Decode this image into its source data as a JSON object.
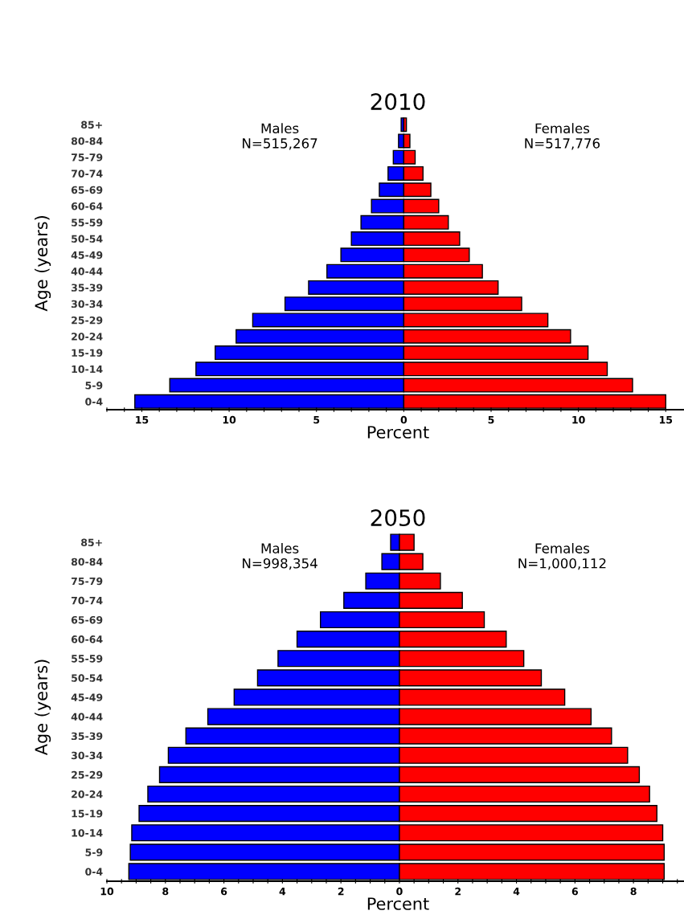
{
  "chart_data": [
    {
      "type": "bar",
      "orientation": "horizontal",
      "stacked": true,
      "title": "2010",
      "xlabel": "Percent",
      "ylabel": "Age (years)",
      "categories": [
        "85+",
        "80-84",
        "75-79",
        "70-74",
        "65-69",
        "60-64",
        "55-59",
        "50-54",
        "45-49",
        "40-44",
        "35-39",
        "30-34",
        "25-29",
        "20-24",
        "15-19",
        "10-14",
        "5-9",
        "0-4"
      ],
      "series": [
        {
          "color": "#0000ff",
          "values": [
            -0.15,
            -0.3,
            -0.6,
            -0.9,
            -1.4,
            -1.85,
            -2.45,
            -3.0,
            -3.6,
            -4.4,
            -5.45,
            -6.8,
            -8.65,
            -9.6,
            -10.8,
            -11.9,
            -13.4,
            -15.4
          ]
        },
        {
          "color": "#ff0000",
          "values": [
            0.15,
            0.35,
            0.65,
            1.1,
            1.55,
            2.0,
            2.55,
            3.2,
            3.75,
            4.5,
            5.4,
            6.75,
            8.25,
            9.55,
            10.55,
            11.65,
            13.1,
            15.0
          ]
        }
      ],
      "xlim": [
        -17,
        16
      ],
      "xticks": [
        {
          "value": -17,
          "label": null
        },
        {
          "value": -16,
          "label": null
        },
        {
          "value": -15,
          "label": "15"
        },
        {
          "value": -14,
          "label": null
        },
        {
          "value": -13,
          "label": null
        },
        {
          "value": -12,
          "label": null
        },
        {
          "value": -11,
          "label": null
        },
        {
          "value": -10,
          "label": "10"
        },
        {
          "value": -9,
          "label": null
        },
        {
          "value": -8,
          "label": null
        },
        {
          "value": -7,
          "label": null
        },
        {
          "value": -6,
          "label": null
        },
        {
          "value": -5,
          "label": "5"
        },
        {
          "value": -4,
          "label": null
        },
        {
          "value": -3,
          "label": null
        },
        {
          "value": -2,
          "label": null
        },
        {
          "value": -1,
          "label": null
        },
        0,
        {
          "value": 1,
          "label": null
        },
        {
          "value": 2,
          "label": null
        },
        {
          "value": 3,
          "label": null
        },
        {
          "value": 4,
          "label": null
        },
        5,
        {
          "value": 6,
          "label": null
        },
        {
          "value": 7,
          "label": null
        },
        {
          "value": 8,
          "label": null
        },
        {
          "value": 9,
          "label": null
        },
        10,
        {
          "value": 11,
          "label": null
        },
        {
          "value": 12,
          "label": null
        },
        {
          "value": 13,
          "label": null
        },
        {
          "value": 14,
          "label": null
        },
        15
      ],
      "annotations": [
        "Males\nN=515,267",
        "Females\nN=517,776"
      ]
    },
    {
      "type": "bar",
      "orientation": "horizontal",
      "stacked": true,
      "title": "2050",
      "xlabel": "Percent",
      "ylabel": "Age (years)",
      "categories": [
        "85+",
        "80-84",
        "75-79",
        "70-74",
        "65-69",
        "60-64",
        "55-59",
        "50-54",
        "45-49",
        "40-44",
        "35-39",
        "30-34",
        "25-29",
        "20-24",
        "15-19",
        "10-14",
        "5-9",
        "0-4"
      ],
      "series": [
        {
          "color": "#0000ff",
          "values": [
            -0.3,
            -0.6,
            -1.15,
            -1.9,
            -2.7,
            -3.5,
            -4.15,
            -4.85,
            -5.65,
            -6.55,
            -7.3,
            -7.9,
            -8.2,
            -8.6,
            -8.9,
            -9.15,
            -9.2,
            -9.25
          ]
        },
        {
          "color": "#ff0000",
          "values": [
            0.5,
            0.8,
            1.4,
            2.15,
            2.9,
            3.65,
            4.25,
            4.85,
            5.65,
            6.55,
            7.25,
            7.8,
            8.2,
            8.55,
            8.8,
            9.0,
            9.05,
            9.05
          ]
        }
      ],
      "xlim": [
        -10,
        9.7
      ],
      "xticks": [
        {
          "value": -10,
          "label": "10"
        },
        {
          "value": -9.5,
          "label": null
        },
        {
          "value": -9,
          "label": null
        },
        {
          "value": -8.5,
          "label": null
        },
        {
          "value": -8,
          "label": "8"
        },
        {
          "value": -7.5,
          "label": null
        },
        {
          "value": -7,
          "label": null
        },
        {
          "value": -6.5,
          "label": null
        },
        {
          "value": -6,
          "label": "6"
        },
        {
          "value": -5.5,
          "label": null
        },
        {
          "value": -5,
          "label": null
        },
        {
          "value": -4.5,
          "label": null
        },
        {
          "value": -4,
          "label": "4"
        },
        {
          "value": -3.5,
          "label": null
        },
        {
          "value": -3,
          "label": null
        },
        {
          "value": -2.5,
          "label": null
        },
        {
          "value": -2,
          "label": "2"
        },
        {
          "value": -1.5,
          "label": null
        },
        {
          "value": -1,
          "label": null
        },
        {
          "value": -0.5,
          "label": null
        },
        0,
        {
          "value": 0.5,
          "label": null
        },
        {
          "value": 1,
          "label": null
        },
        {
          "value": 1.5,
          "label": null
        },
        2,
        {
          "value": 2.5,
          "label": null
        },
        {
          "value": 3,
          "label": null
        },
        {
          "value": 3.5,
          "label": null
        },
        4,
        {
          "value": 4.5,
          "label": null
        },
        {
          "value": 5,
          "label": null
        },
        {
          "value": 5.5,
          "label": null
        },
        6,
        {
          "value": 6.5,
          "label": null
        },
        {
          "value": 7,
          "label": null
        },
        {
          "value": 7.5,
          "label": null
        },
        8,
        {
          "value": 8.5,
          "label": null
        },
        {
          "value": 9,
          "label": null
        },
        {
          "value": 9.5,
          "label": null
        }
      ],
      "annotations": [
        "Males\nN=998,354",
        "Females\nN=1,000,112"
      ]
    }
  ]
}
